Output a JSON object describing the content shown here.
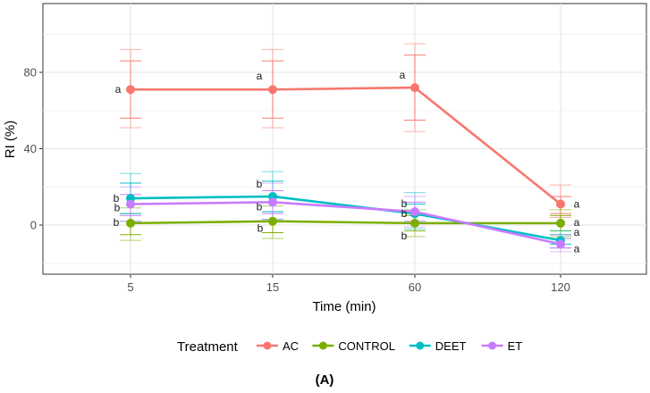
{
  "chart_data": {
    "type": "line",
    "xlabel": "Time (min)",
    "ylabel": "RI (%)",
    "x": [
      "5",
      "15",
      "60",
      "120"
    ],
    "y_ticks": [
      0,
      40,
      80
    ],
    "ylim": [
      -20,
      110
    ],
    "grid": true,
    "legend": {
      "title": "Treatment",
      "position": "bottom"
    },
    "panel_label": "(A)",
    "series": [
      {
        "name": "AC",
        "color": "#F8766D",
        "values": [
          71,
          71,
          72,
          11
        ],
        "lower": [
          56,
          56,
          55,
          6
        ],
        "upper": [
          86,
          86,
          89,
          15
        ],
        "outer_lower": [
          51,
          51,
          49,
          4
        ],
        "outer_upper": [
          92,
          92,
          95,
          21
        ],
        "labels": [
          "a",
          "a",
          "a",
          "a"
        ]
      },
      {
        "name": "CONTROL",
        "color": "#7CAE00",
        "values": [
          1,
          2,
          1,
          1
        ],
        "lower": [
          -5,
          -4,
          -3,
          -3
        ],
        "upper": [
          6,
          7,
          5,
          5
        ],
        "outer_lower": [
          -8,
          -7,
          -6,
          -6
        ],
        "outer_upper": [
          9,
          10,
          8,
          8
        ],
        "labels": [
          "b",
          "b",
          "b",
          "a"
        ]
      },
      {
        "name": "DEET",
        "color": "#00BFC4",
        "values": [
          14,
          15,
          6,
          -8
        ],
        "lower": [
          6,
          7,
          1,
          -10
        ],
        "upper": [
          22,
          23,
          11,
          -5
        ],
        "outer_lower": [
          2,
          3,
          -2,
          -12
        ],
        "outer_upper": [
          27,
          28,
          17,
          -3
        ],
        "labels": [
          "b",
          "b",
          "b",
          "a"
        ]
      },
      {
        "name": "ET",
        "color": "#C77CFF",
        "values": [
          11,
          12,
          7,
          -10
        ],
        "lower": [
          5,
          6,
          2,
          -12
        ],
        "upper": [
          16,
          18,
          12,
          -7
        ],
        "outer_lower": [
          2,
          3,
          -1,
          -14
        ],
        "outer_upper": [
          20,
          22,
          15,
          -5
        ],
        "labels": [
          "b",
          "b",
          "b",
          "a"
        ]
      }
    ]
  }
}
